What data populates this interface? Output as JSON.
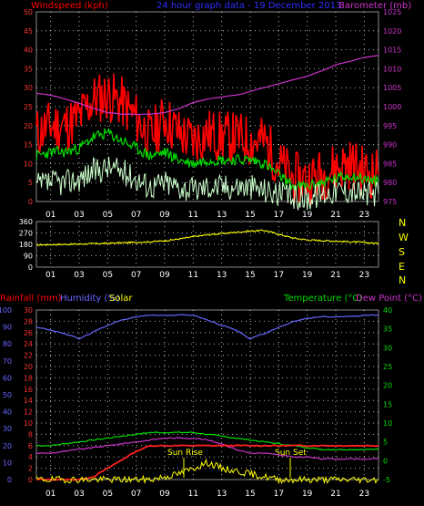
{
  "header": {
    "left_label": "Windspeed (kph)",
    "center_label": "24 hour graph data - 19 December 2013",
    "right_label": "Barometer (mb)"
  },
  "wind_dir_labels": [
    "N",
    "W",
    "S",
    "E",
    "N"
  ],
  "lower_header": {
    "rainfall": "Rainfall (mm)",
    "humidity": "Humidity (%)",
    "solar": "Solar",
    "temperature": "Temperature (°C)",
    "dew_point": "Dew Point (°C)"
  },
  "annotations": {
    "sun_rise": "Sun Rise",
    "sun_set": "Sun Set"
  },
  "colors": {
    "windspeed_gust": "#ff0000",
    "windspeed_avg": "#00dd00",
    "windspeed_low": "#ccffcc",
    "barometer": "#cc33cc",
    "wind_direction": "#ffff00",
    "humidity": "#6666ff",
    "temperature": "#00dd00",
    "dew_point": "#cc33cc",
    "solar_panel": "#ff2020",
    "solar": "#ffff00",
    "rainfall_axis": "#ff0000",
    "grid": "#ffffff",
    "axis_text": "#ffffff"
  },
  "chart_data": [
    {
      "type": "line",
      "panel": "wind_and_barometer",
      "title": "24 hour graph data - 19 December 2013",
      "ylabel_left": "Windspeed (kph)",
      "ylabel_right": "Barometer (mb)",
      "xticks": [
        "01",
        "03",
        "05",
        "07",
        "09",
        "11",
        "13",
        "15",
        "17",
        "19",
        "21",
        "23"
      ],
      "ylim_left": [
        0,
        50
      ],
      "yticks_left": [
        0,
        5,
        10,
        15,
        20,
        25,
        30,
        35,
        40,
        45,
        50
      ],
      "ylim_right": [
        975,
        1025
      ],
      "yticks_right": [
        975,
        980,
        985,
        990,
        995,
        1000,
        1005,
        1010,
        1015,
        1020,
        1025
      ],
      "grid": true,
      "x_hours": [
        0,
        1,
        2,
        3,
        4,
        5,
        6,
        7,
        8,
        9,
        10,
        11,
        12,
        13,
        14,
        15,
        16,
        17,
        18,
        19,
        20,
        21,
        22,
        23,
        24
      ],
      "series": [
        {
          "key": "gust",
          "axis": "left",
          "values": [
            18,
            20,
            20,
            22,
            27,
            28,
            26,
            22,
            17,
            22,
            18,
            16,
            18,
            17,
            17,
            16,
            16,
            10,
            6,
            6,
            7,
            9,
            10,
            8,
            7
          ]
        },
        {
          "key": "avg",
          "axis": "left",
          "values": [
            12,
            13,
            13,
            14,
            17,
            18,
            16,
            14,
            12,
            13,
            11,
            10,
            11,
            11,
            11,
            11,
            10,
            7,
            4,
            4,
            5,
            6,
            7,
            6,
            5
          ]
        },
        {
          "key": "low",
          "axis": "left",
          "values": [
            4,
            5,
            5,
            6,
            8,
            9,
            8,
            6,
            4,
            5,
            4,
            3,
            4,
            4,
            4,
            4,
            3,
            2,
            1,
            1,
            2,
            3,
            3,
            2,
            2
          ]
        },
        {
          "key": "barometer",
          "axis": "right",
          "values": [
            1003.5,
            1003,
            1002,
            1001,
            999.5,
            998.5,
            998,
            998,
            998,
            998.5,
            999.5,
            1001,
            1002,
            1002.5,
            1003,
            1004,
            1005,
            1006,
            1007,
            1008,
            1009.5,
            1011,
            1012,
            1013,
            1013.5
          ]
        }
      ]
    },
    {
      "type": "line",
      "panel": "wind_direction",
      "ylim": [
        0,
        360
      ],
      "yticks": [
        0,
        90,
        180,
        270,
        360
      ],
      "xticks": [
        "01",
        "03",
        "05",
        "07",
        "09",
        "11",
        "13",
        "15",
        "17",
        "19",
        "21",
        "23"
      ],
      "grid": true,
      "x_hours": [
        0,
        1,
        2,
        3,
        4,
        5,
        6,
        7,
        8,
        9,
        10,
        11,
        12,
        13,
        14,
        15,
        16,
        17,
        18,
        19,
        20,
        21,
        22,
        23,
        24
      ],
      "series": [
        {
          "key": "direction",
          "values": [
            175,
            178,
            180,
            182,
            185,
            188,
            192,
            196,
            200,
            208,
            222,
            240,
            255,
            265,
            275,
            285,
            290,
            260,
            230,
            215,
            210,
            205,
            200,
            195,
            185
          ]
        }
      ]
    },
    {
      "type": "line",
      "panel": "climate",
      "xticks": [
        "01",
        "03",
        "05",
        "07",
        "09",
        "11",
        "13",
        "15",
        "17",
        "19",
        "21",
        "23"
      ],
      "ylim_far_left": [
        0,
        100
      ],
      "yticks_far_left": [
        0,
        10,
        20,
        30,
        40,
        50,
        60,
        70,
        80,
        90,
        100
      ],
      "ylim_left": [
        0,
        30
      ],
      "yticks_left": [
        0,
        2,
        4,
        6,
        8,
        10,
        12,
        14,
        16,
        18,
        20,
        22,
        24,
        26,
        28,
        30
      ],
      "ylim_right": [
        -5,
        40
      ],
      "yticks_right": [
        -5,
        0,
        5,
        10,
        15,
        20,
        25,
        30,
        35,
        40
      ],
      "grid": true,
      "x_hours": [
        0,
        1,
        2,
        3,
        4,
        5,
        6,
        7,
        8,
        9,
        10,
        11,
        12,
        13,
        14,
        15,
        16,
        17,
        18,
        19,
        20,
        21,
        22,
        23,
        24
      ],
      "series": [
        {
          "key": "humidity",
          "axis": "far_left",
          "values": [
            90,
            88,
            86,
            83,
            87,
            91,
            94,
            96,
            97,
            97,
            97,
            97,
            94,
            91,
            88,
            83,
            86,
            90,
            93,
            95,
            96,
            96,
            96,
            97,
            97
          ]
        },
        {
          "key": "temperature",
          "axis": "right",
          "values": [
            4,
            4,
            4.5,
            5,
            5.5,
            6,
            6.5,
            7,
            7.5,
            7.5,
            7.5,
            7.5,
            7,
            6.5,
            6,
            5.5,
            5,
            4.5,
            4,
            3.5,
            3,
            3,
            3,
            3,
            3
          ]
        },
        {
          "key": "dew_point",
          "axis": "right",
          "values": [
            2,
            2,
            2.5,
            3,
            3.5,
            4,
            4.5,
            5,
            5.5,
            6,
            6,
            6,
            5.5,
            4.5,
            3,
            2,
            2,
            1.5,
            1,
            1,
            0.5,
            0.5,
            0.5,
            0.5,
            0.5
          ]
        },
        {
          "key": "solar_panel",
          "axis": "left",
          "values": [
            0,
            0,
            0,
            0,
            0.5,
            2,
            3.5,
            5,
            6,
            6,
            6,
            6,
            6,
            6,
            6,
            6,
            6,
            6,
            6,
            6,
            6,
            6,
            6,
            6,
            6
          ]
        },
        {
          "key": "solar",
          "axis": "left",
          "values": [
            0,
            0,
            0,
            0,
            0,
            0,
            0,
            0,
            0,
            0.5,
            1,
            2,
            3,
            2,
            1.5,
            1,
            0.5,
            0,
            0,
            0,
            0,
            0,
            0,
            0,
            0
          ]
        }
      ]
    }
  ]
}
